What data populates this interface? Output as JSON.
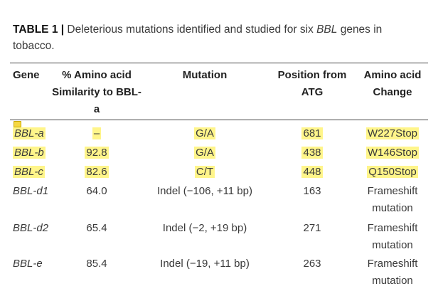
{
  "caption": {
    "label": "TABLE 1 |",
    "text_before": " Deleterious mutations identified and studied for six ",
    "italic_term": "BBL",
    "text_after": " genes in tobacco."
  },
  "table": {
    "headers": [
      "Gene",
      "% Amino acid Similarity to BBL-a",
      "Mutation",
      "Position from ATG",
      "Amino acid Change"
    ],
    "rows": [
      {
        "gene": "BBL-a",
        "similarity": "–",
        "mutation": "G/A",
        "position": "681",
        "change": "W227Stop"
      },
      {
        "gene": "BBL-b",
        "similarity": "92.8",
        "mutation": "G/A",
        "position": "438",
        "change": "W146Stop"
      },
      {
        "gene": "BBL-c",
        "similarity": "82.6",
        "mutation": "C/T",
        "position": "448",
        "change": "Q150Stop"
      },
      {
        "gene": "BBL-d1",
        "similarity": "64.0",
        "mutation": "Indel (−106, +11 bp)",
        "position": "163",
        "change": "Frameshift mutation"
      },
      {
        "gene": "BBL-d2",
        "similarity": "65.4",
        "mutation": "Indel (−2, +19 bp)",
        "position": "271",
        "change": "Frameshift mutation"
      },
      {
        "gene": "BBL-e",
        "similarity": "85.4",
        "mutation": "Indel (−19, +11 bp)",
        "position": "263",
        "change": "Frameshift mutation"
      }
    ]
  },
  "colors": {
    "highlight": "#fff58a",
    "rule": "#444444"
  },
  "icons": {
    "annotation": "comment-marker-icon"
  }
}
